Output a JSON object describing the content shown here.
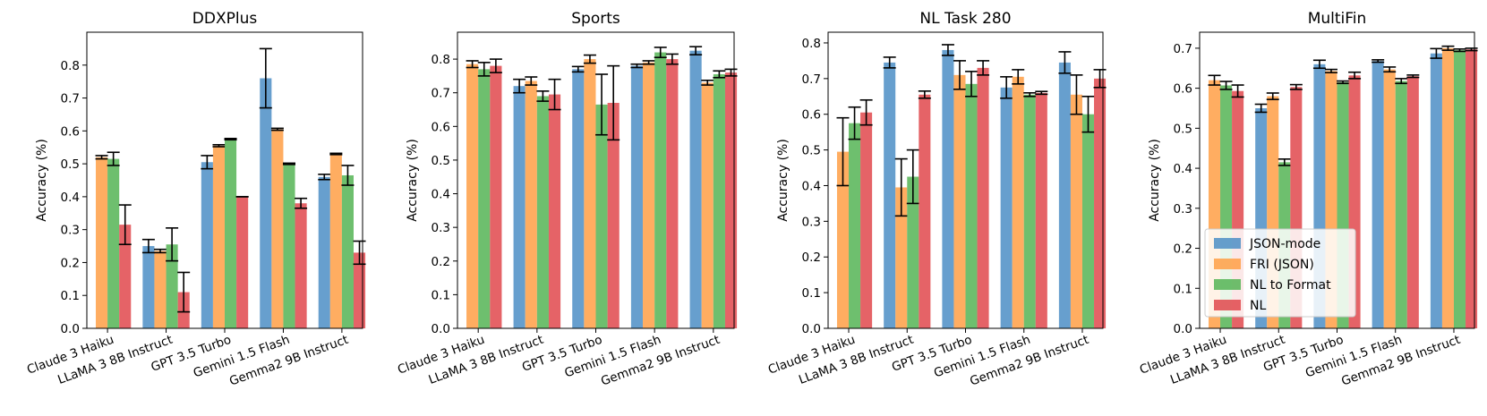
{
  "chart_data": [
    {
      "type": "bar",
      "title": "DDXPlus",
      "ylabel": "Accuracy (%)",
      "xlabel": "",
      "ylim": [
        0,
        0.9
      ],
      "yticks": [
        "0.0",
        "0.1",
        "0.2",
        "0.3",
        "0.4",
        "0.5",
        "0.6",
        "0.7",
        "0.8"
      ],
      "categories": [
        "Claude 3 Haiku",
        "LLaMA 3 8B Instruct",
        "GPT 3.5 Turbo",
        "Gemini 1.5 Flash",
        "Gemma2 9B Instruct"
      ],
      "series": [
        {
          "name": "JSON-mode",
          "values": [
            0,
            0.25,
            0.505,
            0.76,
            0.46
          ],
          "errors": [
            0,
            0.02,
            0.02,
            0.09,
            0.008
          ]
        },
        {
          "name": "FRI (JSON)",
          "values": [
            0.52,
            0.235,
            0.555,
            0.605,
            0.53
          ],
          "errors": [
            0.005,
            0.005,
            0.003,
            0.003,
            0.002
          ]
        },
        {
          "name": "NL to Format",
          "values": [
            0.515,
            0.255,
            0.575,
            0.5,
            0.465
          ],
          "errors": [
            0.02,
            0.05,
            0.002,
            0.002,
            0.03
          ]
        },
        {
          "name": "NL",
          "values": [
            0.315,
            0.11,
            0.4,
            0.38,
            0.23
          ],
          "errors": [
            0.06,
            0.06,
            0,
            0.015,
            0.035
          ]
        }
      ]
    },
    {
      "type": "bar",
      "title": "Sports",
      "ylabel": "Accuracy (%)",
      "xlabel": "",
      "ylim": [
        0,
        0.88
      ],
      "yticks": [
        "0.0",
        "0.1",
        "0.2",
        "0.3",
        "0.4",
        "0.5",
        "0.6",
        "0.7",
        "0.8"
      ],
      "categories": [
        "Claude 3 Haiku",
        "LLaMA 3 8B Instruct",
        "GPT 3.5 Turbo",
        "Gemini 1.5 Flash",
        "Gemma2 9B Instruct"
      ],
      "series": [
        {
          "name": "JSON-mode",
          "values": [
            0,
            0.72,
            0.77,
            0.78,
            0.825
          ],
          "errors": [
            0,
            0.02,
            0.008,
            0.005,
            0.012
          ]
        },
        {
          "name": "FRI (JSON)",
          "values": [
            0.785,
            0.735,
            0.8,
            0.79,
            0.73
          ],
          "errors": [
            0.01,
            0.012,
            0.012,
            0.005,
            0.007
          ]
        },
        {
          "name": "NL to Format",
          "values": [
            0.77,
            0.69,
            0.665,
            0.82,
            0.755
          ],
          "errors": [
            0.02,
            0.015,
            0.09,
            0.015,
            0.01
          ]
        },
        {
          "name": "NL",
          "values": [
            0.78,
            0.695,
            0.67,
            0.8,
            0.76
          ],
          "errors": [
            0.02,
            0.045,
            0.11,
            0.015,
            0.01
          ]
        }
      ]
    },
    {
      "type": "bar",
      "title": "NL Task 280",
      "ylabel": "Accuracy (%)",
      "xlabel": "",
      "ylim": [
        0,
        0.83
      ],
      "yticks": [
        "0.0",
        "0.1",
        "0.2",
        "0.3",
        "0.4",
        "0.5",
        "0.6",
        "0.7",
        "0.8"
      ],
      "categories": [
        "Claude 3 Haiku",
        "LLaMA 3 8B Instruct",
        "GPT 3.5 Turbo",
        "Gemini 1.5 Flash",
        "Gemma2 9B Instruct"
      ],
      "series": [
        {
          "name": "JSON-mode",
          "values": [
            0,
            0.745,
            0.78,
            0.675,
            0.745
          ],
          "errors": [
            0,
            0.015,
            0.015,
            0.03,
            0.03
          ]
        },
        {
          "name": "FRI (JSON)",
          "values": [
            0.495,
            0.395,
            0.71,
            0.705,
            0.655
          ],
          "errors": [
            0.095,
            0.08,
            0.04,
            0.02,
            0.055
          ]
        },
        {
          "name": "NL to Format",
          "values": [
            0.575,
            0.425,
            0.685,
            0.655,
            0.6
          ],
          "errors": [
            0.045,
            0.075,
            0.035,
            0.005,
            0.05
          ]
        },
        {
          "name": "NL",
          "values": [
            0.605,
            0.655,
            0.73,
            0.66,
            0.7
          ],
          "errors": [
            0.035,
            0.01,
            0.02,
            0.004,
            0.025
          ]
        }
      ]
    },
    {
      "type": "bar",
      "title": "MultiFin",
      "ylabel": "Accuracy (%)",
      "xlabel": "",
      "ylim": [
        0,
        0.74
      ],
      "yticks": [
        "0.0",
        "0.1",
        "0.2",
        "0.3",
        "0.4",
        "0.5",
        "0.6",
        "0.7"
      ],
      "categories": [
        "Claude 3 Haiku",
        "LLaMA 3 8B Instruct",
        "GPT 3.5 Turbo",
        "Gemini 1.5 Flash",
        "Gemma2 9B Instruct"
      ],
      "legend": "lower-left",
      "series": [
        {
          "name": "JSON-mode",
          "values": [
            0,
            0.55,
            0.66,
            0.668,
            0.687
          ],
          "errors": [
            0,
            0.01,
            0.01,
            0.003,
            0.012
          ]
        },
        {
          "name": "FRI (JSON)",
          "values": [
            0.62,
            0.58,
            0.643,
            0.647,
            0.7
          ],
          "errors": [
            0.012,
            0.008,
            0.004,
            0.006,
            0.005
          ]
        },
        {
          "name": "NL to Format",
          "values": [
            0.607,
            0.415,
            0.615,
            0.618,
            0.695
          ],
          "errors": [
            0.01,
            0.008,
            0.003,
            0.006,
            0.003
          ]
        },
        {
          "name": "NL",
          "values": [
            0.593,
            0.603,
            0.632,
            0.63,
            0.697
          ],
          "errors": [
            0.015,
            0.006,
            0.008,
            0.003,
            0.003
          ]
        }
      ]
    }
  ],
  "colors": {
    "JSON-mode": "#4c8ec5",
    "FRI (JSON)": "#ff9f45",
    "NL to Format": "#55b455",
    "NL": "#e0484c"
  }
}
